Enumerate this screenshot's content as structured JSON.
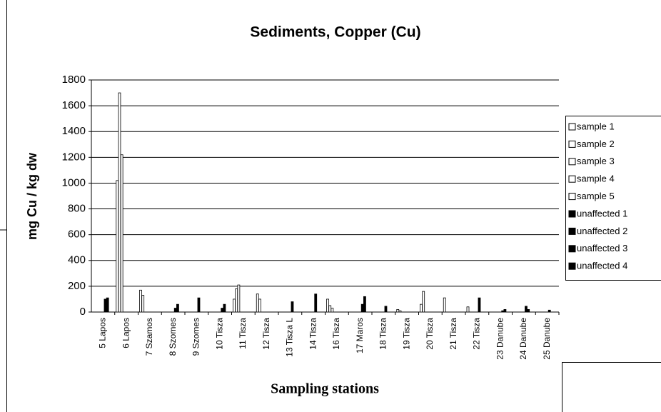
{
  "chart_data": {
    "type": "bar",
    "title": "Sediments, Copper (Cu)",
    "y_label": "mg Cu / kg dw",
    "x_label": "Sampling stations",
    "categories": [
      "5 Lapos",
      "6 Lapos",
      "7 Szamos",
      "8 Szomes",
      "9 Szomes",
      "10 Tisza",
      "11 Tisza",
      "12 Tisza",
      "13 Tisza L",
      "14 Tisza",
      "16 Tisza",
      "17 Maros",
      "18 Tisza",
      "19 Tisza",
      "20 Tisza",
      "21 Tisza",
      "22 Tisza",
      "23 Danube",
      "24 Danube",
      "25 Danube"
    ],
    "series": [
      {
        "name": "sample 1",
        "color": "#ffffff",
        "values": [
          null,
          1020,
          170,
          null,
          null,
          null,
          100,
          140,
          null,
          null,
          100,
          null,
          null,
          20,
          60,
          110,
          40,
          null,
          null,
          null
        ]
      },
      {
        "name": "sample 2",
        "color": "#ffffff",
        "values": [
          null,
          1700,
          130,
          null,
          null,
          null,
          180,
          100,
          null,
          null,
          50,
          null,
          null,
          10,
          160,
          null,
          null,
          null,
          null,
          null
        ]
      },
      {
        "name": "sample 3",
        "color": "#ffffff",
        "values": [
          null,
          1220,
          null,
          null,
          null,
          null,
          210,
          null,
          null,
          null,
          30,
          null,
          null,
          null,
          null,
          null,
          null,
          null,
          null,
          null
        ]
      },
      {
        "name": "sample 4",
        "color": "#ffffff",
        "values": [
          null,
          null,
          null,
          null,
          null,
          null,
          null,
          null,
          null,
          null,
          null,
          null,
          null,
          null,
          null,
          null,
          null,
          null,
          null,
          null
        ]
      },
      {
        "name": "sample 5",
        "color": "#ffffff",
        "values": [
          null,
          null,
          null,
          null,
          null,
          null,
          null,
          null,
          null,
          null,
          null,
          null,
          null,
          null,
          null,
          null,
          null,
          null,
          null,
          null
        ]
      },
      {
        "name": "unaffected 1",
        "color": "#000000",
        "values": [
          100,
          null,
          null,
          30,
          110,
          30,
          null,
          null,
          80,
          140,
          null,
          60,
          45,
          null,
          null,
          null,
          110,
          10,
          45,
          15
        ]
      },
      {
        "name": "unaffected 2",
        "color": "#000000",
        "values": [
          110,
          null,
          null,
          60,
          null,
          60,
          null,
          null,
          null,
          null,
          null,
          120,
          null,
          null,
          null,
          null,
          null,
          20,
          20,
          null
        ]
      },
      {
        "name": "unaffected 3",
        "color": "#000000",
        "values": [
          null,
          null,
          null,
          null,
          null,
          null,
          null,
          null,
          null,
          null,
          null,
          null,
          null,
          null,
          null,
          null,
          null,
          null,
          null,
          null
        ]
      },
      {
        "name": "unaffected 4",
        "color": "#000000",
        "values": [
          null,
          null,
          null,
          null,
          null,
          null,
          null,
          null,
          null,
          null,
          null,
          null,
          null,
          null,
          null,
          null,
          null,
          null,
          null,
          null
        ]
      }
    ],
    "ylim": [
      0,
      1800
    ],
    "yticks": [
      0,
      200,
      400,
      600,
      800,
      1000,
      1200,
      1400,
      1600,
      1800
    ],
    "grid": true,
    "legend": "right"
  }
}
